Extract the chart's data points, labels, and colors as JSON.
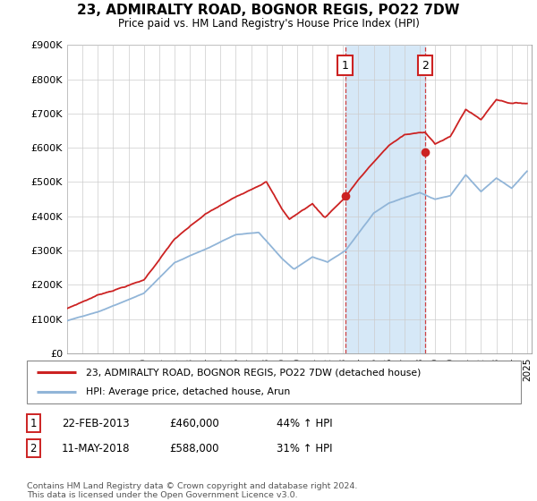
{
  "title": "23, ADMIRALTY ROAD, BOGNOR REGIS, PO22 7DW",
  "subtitle": "Price paid vs. HM Land Registry's House Price Index (HPI)",
  "ylim": [
    0,
    900000
  ],
  "yticks": [
    0,
    100000,
    200000,
    300000,
    400000,
    500000,
    600000,
    700000,
    800000,
    900000
  ],
  "ytick_labels": [
    "£0",
    "£100K",
    "£200K",
    "£300K",
    "£400K",
    "£500K",
    "£600K",
    "£700K",
    "£800K",
    "£900K"
  ],
  "hpi_color": "#91b5d8",
  "price_color": "#cc2222",
  "sale1_price": 460000,
  "sale2_price": 588000,
  "legend_line1": "23, ADMIRALTY ROAD, BOGNOR REGIS, PO22 7DW (detached house)",
  "legend_line2": "HPI: Average price, detached house, Arun",
  "footnote": "Contains HM Land Registry data © Crown copyright and database right 2024.\nThis data is licensed under the Open Government Licence v3.0.",
  "table_row1": [
    "1",
    "22-FEB-2013",
    "£460,000",
    "44% ↑ HPI"
  ],
  "table_row2": [
    "2",
    "11-MAY-2018",
    "£588,000",
    "31% ↑ HPI"
  ],
  "background_color": "#ffffff",
  "grid_color": "#cccccc",
  "shaded_color": "#d6e8f7"
}
